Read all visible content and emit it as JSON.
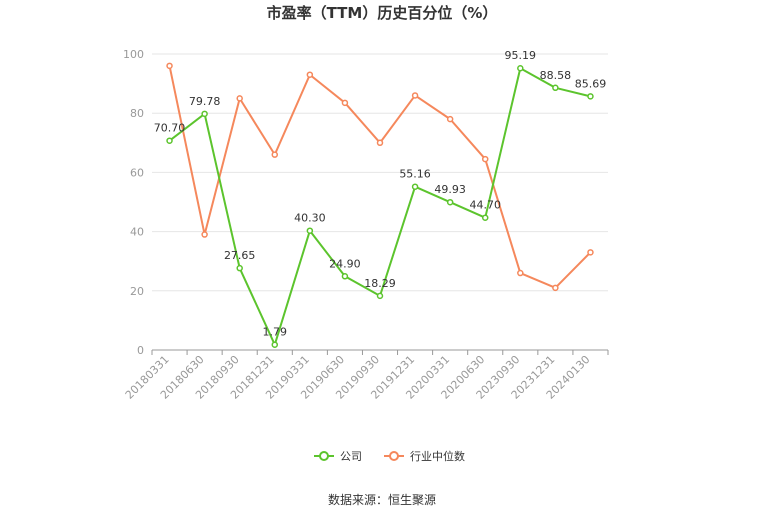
{
  "chart_data": {
    "type": "line",
    "title": "市盈率（TTM）历史百分位（%）",
    "categories": [
      "20180331",
      "20180630",
      "20180930",
      "20181231",
      "20190331",
      "20190630",
      "20190930",
      "20191231",
      "20200331",
      "20200630",
      "20230930",
      "20231231",
      "20240130"
    ],
    "ylim": [
      0,
      100
    ],
    "yticks": [
      "0",
      "20",
      "40",
      "60",
      "80",
      "100"
    ],
    "grid": true,
    "legend_position": "bottom-center",
    "series": [
      {
        "name": "公司",
        "color": "#5cc42d",
        "values": [
          70.7,
          79.78,
          27.65,
          1.79,
          40.3,
          24.9,
          18.29,
          55.16,
          49.93,
          44.7,
          95.19,
          88.58,
          85.69
        ],
        "labels": [
          "70.70",
          "79.78",
          "27.65",
          "1.79",
          "40.30",
          "24.90",
          "18.29",
          "55.16",
          "49.93",
          "44.70",
          "95.19",
          "88.58",
          "85.69"
        ]
      },
      {
        "name": "行业中位数",
        "color": "#f5885c",
        "values": [
          96,
          39,
          85,
          66,
          93,
          83.5,
          70,
          86,
          78,
          64.5,
          26,
          21,
          33
        ]
      }
    ]
  },
  "source_text": "数据来源：恒生聚源"
}
